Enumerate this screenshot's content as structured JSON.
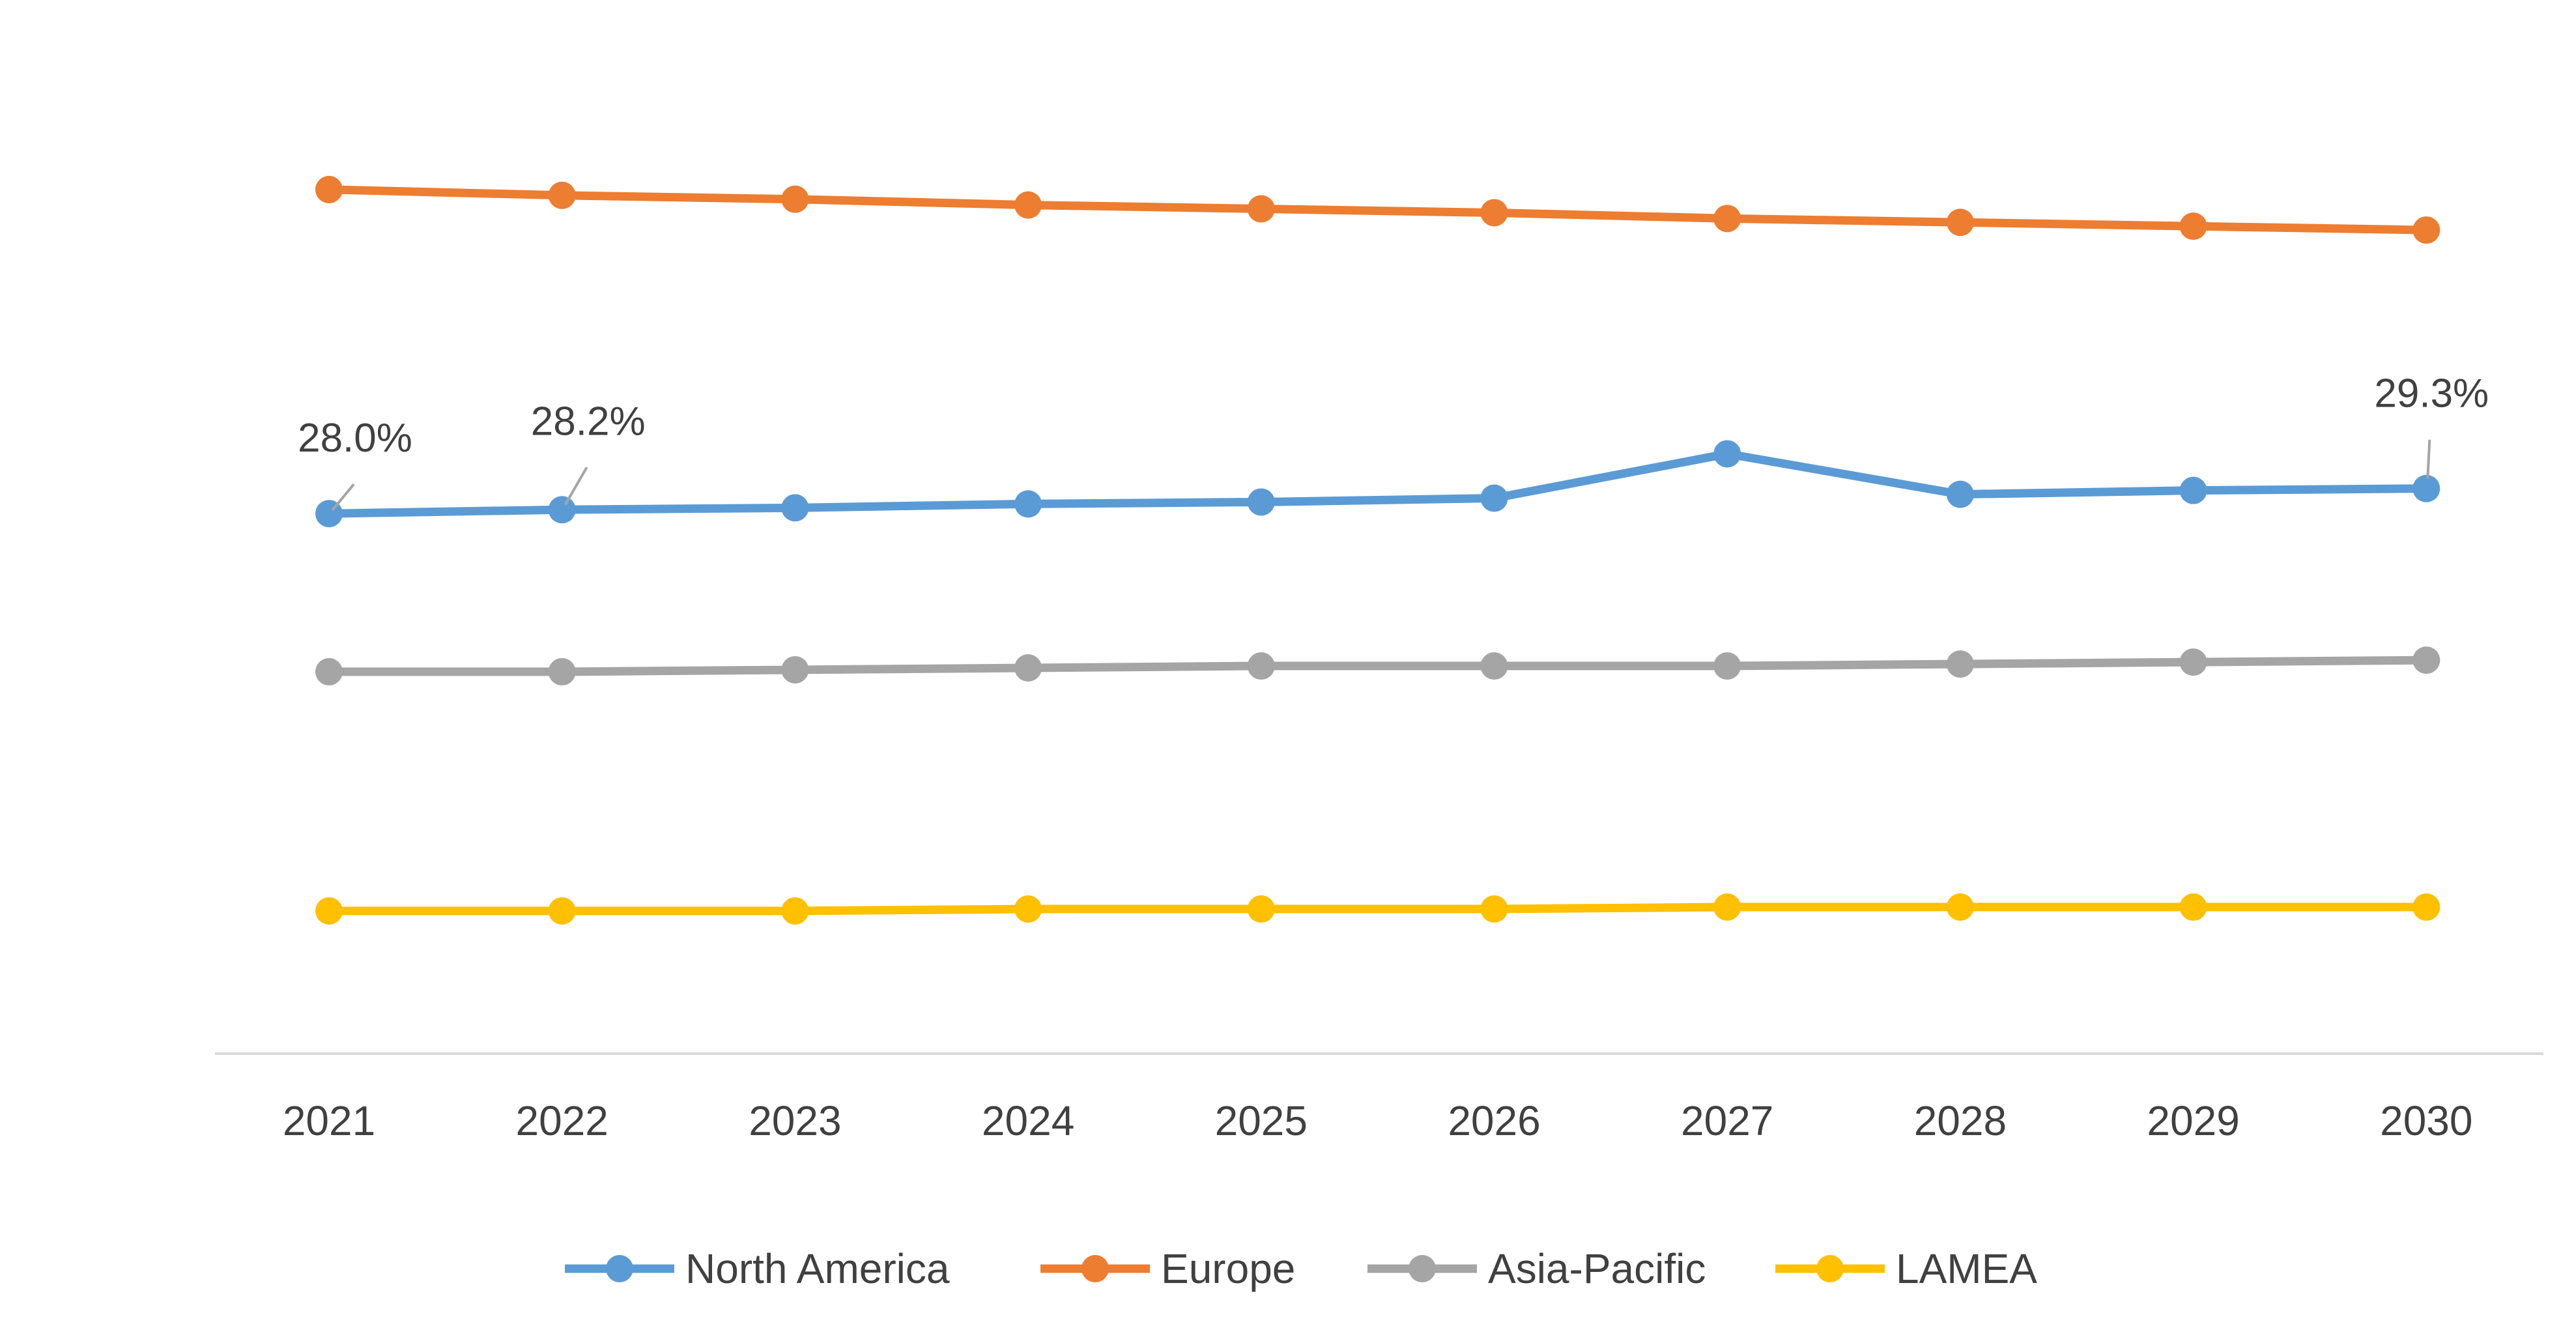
{
  "chart_data": {
    "type": "line",
    "title": "",
    "xlabel": "",
    "ylabel": "",
    "ylim": [
      0,
      55
    ],
    "grid": false,
    "legend_position": "bottom",
    "categories": [
      "2021",
      "2022",
      "2023",
      "2024",
      "2025",
      "2026",
      "2027",
      "2028",
      "2029",
      "2030"
    ],
    "series": [
      {
        "name": "North America",
        "color": "#5B9BD5",
        "values": [
          28.0,
          28.2,
          28.3,
          28.5,
          28.6,
          28.8,
          31.1,
          29.0,
          29.2,
          29.3
        ]
      },
      {
        "name": "Europe",
        "color": "#ED7D31",
        "values": [
          44.8,
          44.5,
          44.3,
          44.0,
          43.8,
          43.6,
          43.3,
          43.1,
          42.9,
          42.7
        ]
      },
      {
        "name": "Asia-Pacific",
        "color": "#A5A5A5",
        "values": [
          19.8,
          19.8,
          19.9,
          20.0,
          20.1,
          20.1,
          20.1,
          20.2,
          20.3,
          20.4
        ]
      },
      {
        "name": "LAMEA",
        "color": "#FFC000",
        "values": [
          7.4,
          7.4,
          7.4,
          7.5,
          7.5,
          7.5,
          7.6,
          7.6,
          7.6,
          7.6
        ]
      }
    ],
    "annotations": [
      {
        "series": "North America",
        "category": "2021",
        "text": "28.0%"
      },
      {
        "series": "North America",
        "category": "2022",
        "text": "28.2%"
      },
      {
        "series": "North America",
        "category": "2030",
        "text": "29.3%"
      }
    ]
  }
}
